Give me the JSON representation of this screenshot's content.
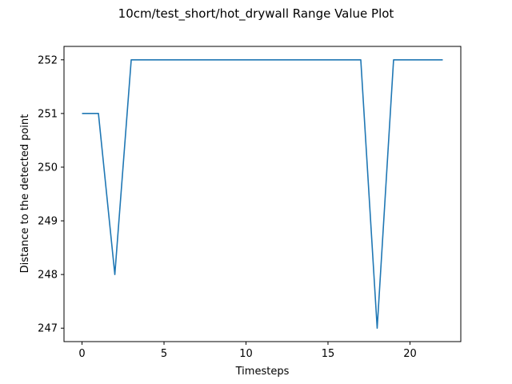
{
  "chart_data": {
    "type": "line",
    "title": "10cm/test_short/hot_drywall Range Value Plot",
    "xlabel": "Timesteps",
    "ylabel": "Distance to the detected point",
    "xlim": [
      -1.1,
      23.1
    ],
    "ylim": [
      246.75,
      252.25
    ],
    "xticks": [
      0,
      5,
      10,
      15,
      20
    ],
    "yticks": [
      247,
      248,
      249,
      250,
      251,
      252
    ],
    "grid": false,
    "series": [
      {
        "color": "#1f77b4",
        "x": [
          0,
          1,
          2,
          3,
          4,
          5,
          6,
          7,
          8,
          9,
          10,
          11,
          12,
          13,
          14,
          15,
          16,
          17,
          18,
          19,
          20,
          21,
          22
        ],
        "y": [
          251,
          251,
          248,
          252,
          252,
          252,
          252,
          252,
          252,
          252,
          252,
          252,
          252,
          252,
          252,
          252,
          252,
          252,
          247,
          252,
          252,
          252,
          252
        ]
      }
    ]
  }
}
